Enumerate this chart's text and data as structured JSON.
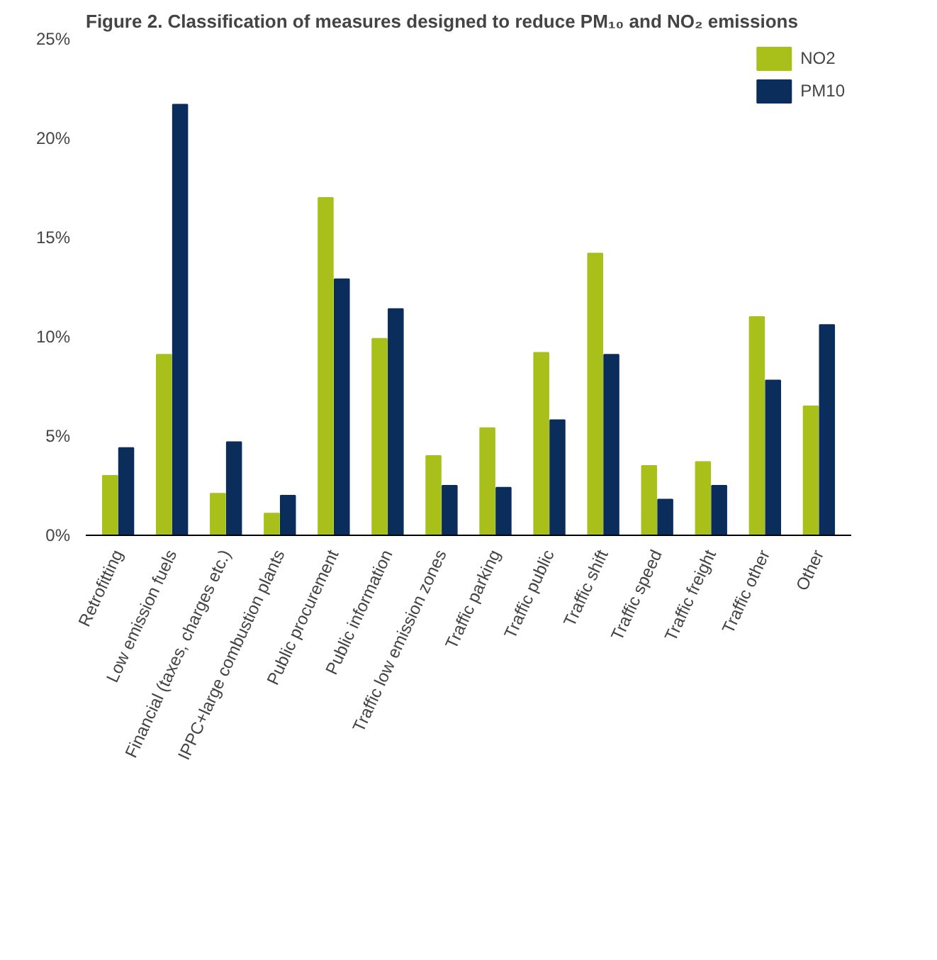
{
  "chart_data": {
    "type": "bar",
    "title": "Figure 2. Classification of measures designed to reduce PM₁₀ and NO₂ emissions",
    "categories": [
      "Retrofitting",
      "Low emission fuels",
      "Financial (taxes, charges etc.)",
      "IPPC+large combustion plants",
      "Public procurement",
      "Public information",
      "Traffic low emission zones",
      "Traffic parking",
      "Traffic public",
      "Traffic shift",
      "Traffic speed",
      "Traffic freight",
      "Traffic other",
      "Other"
    ],
    "series": [
      {
        "name": "NO2",
        "color": "#a8c019",
        "values": [
          3.0,
          9.1,
          2.1,
          1.1,
          17.0,
          9.9,
          4.0,
          5.4,
          9.2,
          14.2,
          3.5,
          3.7,
          11.0,
          6.5
        ]
      },
      {
        "name": "PM10",
        "color": "#0b2d5b",
        "values": [
          4.4,
          21.7,
          4.7,
          2.0,
          12.9,
          11.4,
          2.5,
          2.4,
          5.8,
          9.1,
          1.8,
          2.5,
          7.8,
          10.6
        ]
      }
    ],
    "ylim": [
      0,
      25
    ],
    "yticks": [
      {
        "value": 0,
        "label": "0%"
      },
      {
        "value": 5,
        "label": "5%"
      },
      {
        "value": 10,
        "label": "10%"
      },
      {
        "value": 15,
        "label": "15%"
      },
      {
        "value": 20,
        "label": "20%"
      },
      {
        "value": 25,
        "label": "25%"
      }
    ],
    "grid": false,
    "legend": "top right"
  }
}
